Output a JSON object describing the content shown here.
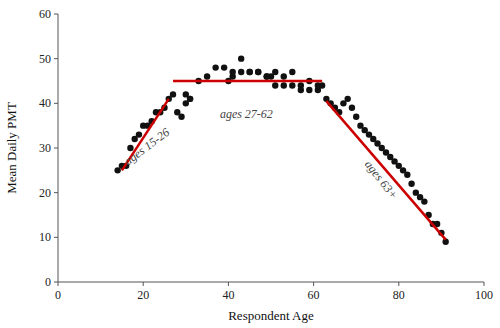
{
  "chart_data": {
    "type": "scatter",
    "xlabel": "Respondent Age",
    "ylabel": "Mean Daily PMT",
    "xlim": [
      0,
      100
    ],
    "ylim": [
      0,
      60
    ],
    "xticks": [
      0,
      20,
      40,
      60,
      80,
      100
    ],
    "yticks": [
      0,
      10,
      20,
      30,
      40,
      50,
      60
    ],
    "series": [
      {
        "type": "scatter",
        "color": "#111111",
        "x": [
          14,
          15,
          16,
          17,
          18,
          19,
          20,
          21,
          22,
          23,
          24,
          25,
          26,
          27,
          28,
          29,
          30,
          31,
          33,
          35,
          37,
          39,
          41,
          43,
          45,
          47,
          49,
          51,
          53,
          55,
          57,
          59,
          61,
          63,
          64,
          65,
          66,
          67,
          68,
          69,
          70,
          71,
          72,
          73,
          74,
          75,
          76,
          77,
          78,
          79,
          80,
          81,
          82,
          83,
          84,
          85,
          86,
          87,
          88,
          89,
          90,
          91
        ],
        "values": [
          25,
          26,
          26,
          30,
          32,
          33,
          35,
          35,
          36,
          38,
          38,
          39,
          41,
          42,
          38,
          37,
          40,
          41,
          45,
          46,
          48,
          48,
          46,
          47,
          47,
          47,
          46,
          44,
          44,
          44,
          43,
          43,
          43,
          41,
          40,
          39,
          38,
          40,
          41,
          39,
          37,
          35,
          34,
          33,
          32,
          31,
          30,
          29,
          28,
          27,
          26,
          25,
          24,
          22,
          20,
          19,
          18,
          15,
          13,
          13,
          11,
          9
        ]
      },
      {
        "type": "scatter",
        "color": "#111111",
        "x": [
          30,
          31,
          40,
          41,
          43,
          45,
          47,
          49,
          50,
          51,
          53,
          55,
          57,
          59,
          61,
          62
        ],
        "values": [
          42,
          41,
          45,
          47,
          50,
          47,
          47,
          46,
          46,
          47,
          46,
          47,
          44,
          45,
          44,
          44
        ]
      },
      {
        "type": "line",
        "color": "#cc0000",
        "x": [
          15,
          26
        ],
        "values": [
          25.0,
          41.0
        ]
      },
      {
        "type": "line",
        "color": "#cc0000",
        "x": [
          27,
          62
        ],
        "values": [
          45.0,
          45.0
        ]
      },
      {
        "type": "line",
        "color": "#cc0000",
        "x": [
          63,
          91
        ],
        "values": [
          40.5,
          9.5
        ]
      }
    ],
    "annotations": [
      {
        "text": "ages 15-26",
        "x": 21,
        "y": 31,
        "color": "#444444"
      },
      {
        "text": "ages 27-62",
        "x": 38,
        "y": 40,
        "color": "#444444"
      },
      {
        "text": "ages 63+",
        "x": 78,
        "y": 25,
        "color": "#444444"
      }
    ]
  }
}
